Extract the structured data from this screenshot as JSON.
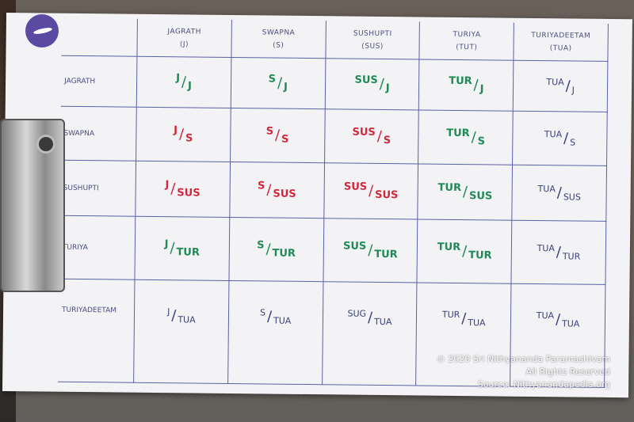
{
  "colors": {
    "green": "#1f8a55",
    "red": "#d0283a",
    "navy": "#3a3f78",
    "grid": "#5a5fa6"
  },
  "columns": [
    {
      "name": "JAGRATH",
      "abbr": "(J)"
    },
    {
      "name": "SWAPNA",
      "abbr": "(S)"
    },
    {
      "name": "SUSHUPTI",
      "abbr": "(SUS)"
    },
    {
      "name": "TURIYA",
      "abbr": "(TUT)"
    },
    {
      "name": "TURIYADEETAM",
      "abbr": "(TUA)"
    }
  ],
  "rows": [
    {
      "label": "JAGRATH",
      "cells": [
        {
          "num": "J",
          "den": "J",
          "color": "green"
        },
        {
          "num": "S",
          "den": "J",
          "color": "green"
        },
        {
          "num": "SUS",
          "den": "J",
          "color": "green"
        },
        {
          "num": "TUR",
          "den": "J",
          "color": "green"
        },
        {
          "num": "TUA",
          "den": "J",
          "color": "navy"
        }
      ]
    },
    {
      "label": "SWAPNA",
      "cells": [
        {
          "num": "J",
          "den": "S",
          "color": "red"
        },
        {
          "num": "S",
          "den": "S",
          "color": "red"
        },
        {
          "num": "SUS",
          "den": "S",
          "color": "red"
        },
        {
          "num": "TUR",
          "den": "S",
          "color": "green"
        },
        {
          "num": "TUA",
          "den": "S",
          "color": "navy"
        }
      ]
    },
    {
      "label": "SUSHUPTI",
      "cells": [
        {
          "num": "J",
          "den": "SUS",
          "color": "red"
        },
        {
          "num": "S",
          "den": "SUS",
          "color": "red"
        },
        {
          "num": "SUS",
          "den": "SUS",
          "color": "red"
        },
        {
          "num": "TUR",
          "den": "SUS",
          "color": "green"
        },
        {
          "num": "TUA",
          "den": "SUS",
          "color": "navy"
        }
      ]
    },
    {
      "label": "TURIYA",
      "cells": [
        {
          "num": "J",
          "den": "TUR",
          "color": "green"
        },
        {
          "num": "S",
          "den": "TUR",
          "color": "green"
        },
        {
          "num": "SUS",
          "den": "TUR",
          "color": "green"
        },
        {
          "num": "TUR",
          "den": "TUR",
          "color": "green"
        },
        {
          "num": "TUA",
          "den": "TUR",
          "color": "navy"
        }
      ]
    },
    {
      "label": "TURIYADEETAM",
      "cells": [
        {
          "num": "J",
          "den": "TUA",
          "color": "navy"
        },
        {
          "num": "S",
          "den": "TUA",
          "color": "navy"
        },
        {
          "num": "SUG",
          "den": "TUA",
          "color": "navy"
        },
        {
          "num": "TUR",
          "den": "TUA",
          "color": "navy"
        },
        {
          "num": "TUA",
          "den": "TUA",
          "color": "navy"
        }
      ]
    }
  ],
  "watermark": {
    "line1": "© 2020 Sri Nithyananda Paramashivam",
    "line2": "All Rights Reserved",
    "line3": "Source: Nithyanandapedia.org"
  }
}
